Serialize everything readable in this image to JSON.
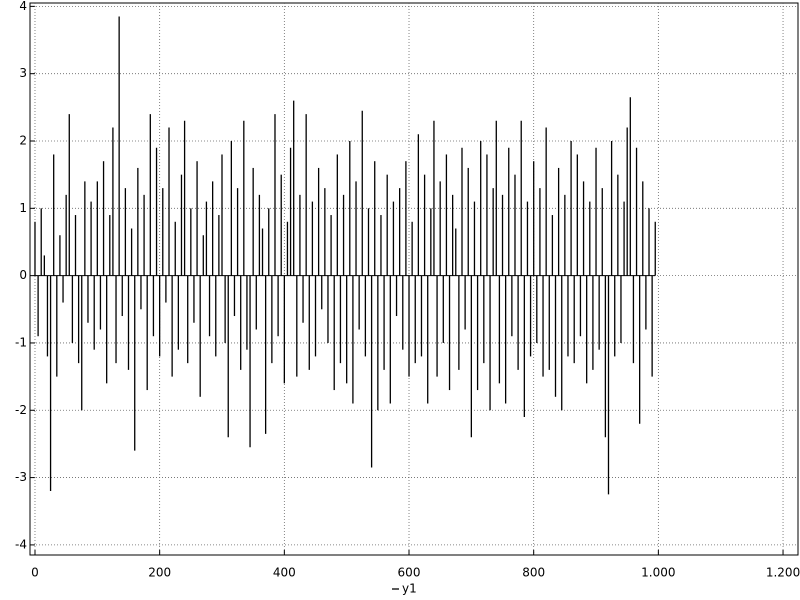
{
  "chart_data": {
    "type": "bar",
    "x": [
      0,
      5,
      10,
      15,
      20,
      25,
      30,
      35,
      40,
      45,
      50,
      55,
      60,
      65,
      70,
      75,
      80,
      85,
      90,
      95,
      100,
      105,
      110,
      115,
      120,
      125,
      130,
      135,
      140,
      145,
      150,
      155,
      160,
      165,
      170,
      175,
      180,
      185,
      190,
      195,
      200,
      205,
      210,
      215,
      220,
      225,
      230,
      235,
      240,
      245,
      250,
      255,
      260,
      265,
      270,
      275,
      280,
      285,
      290,
      295,
      300,
      305,
      310,
      315,
      320,
      325,
      330,
      335,
      340,
      345,
      350,
      355,
      360,
      365,
      370,
      375,
      380,
      385,
      390,
      395,
      400,
      405,
      410,
      415,
      420,
      425,
      430,
      435,
      440,
      445,
      450,
      455,
      460,
      465,
      470,
      475,
      480,
      485,
      490,
      495,
      500,
      505,
      510,
      515,
      520,
      525,
      530,
      535,
      540,
      545,
      550,
      555,
      560,
      565,
      570,
      575,
      580,
      585,
      590,
      595,
      600,
      605,
      610,
      615,
      620,
      625,
      630,
      635,
      640,
      645,
      650,
      655,
      660,
      665,
      670,
      675,
      680,
      685,
      690,
      695,
      700,
      705,
      710,
      715,
      720,
      725,
      730,
      735,
      740,
      745,
      750,
      755,
      760,
      765,
      770,
      775,
      780,
      785,
      790,
      795,
      800,
      805,
      810,
      815,
      820,
      825,
      830,
      835,
      840,
      845,
      850,
      855,
      860,
      865,
      870,
      875,
      880,
      885,
      890,
      895,
      900,
      905,
      910,
      915,
      920,
      925,
      930,
      935,
      940,
      945,
      950,
      955,
      960,
      965,
      970,
      975,
      980,
      985,
      990,
      995
    ],
    "series": [
      {
        "name": "y1",
        "color": "#000000",
        "values": [
          0.8,
          -0.9,
          1.0,
          0.3,
          -1.2,
          -3.2,
          1.8,
          -1.5,
          0.6,
          -0.4,
          1.2,
          2.4,
          -1.0,
          0.9,
          -1.3,
          -2.0,
          1.4,
          -0.7,
          1.1,
          -1.1,
          1.4,
          -0.8,
          1.7,
          -1.6,
          0.9,
          2.2,
          -1.3,
          3.85,
          -0.6,
          1.3,
          -1.4,
          0.7,
          -2.6,
          1.6,
          -0.5,
          1.2,
          -1.7,
          2.4,
          -0.9,
          1.9,
          -1.2,
          1.3,
          -0.4,
          2.2,
          -1.5,
          0.8,
          -1.1,
          1.5,
          2.3,
          -1.3,
          1.0,
          -0.7,
          1.7,
          -1.8,
          0.6,
          1.1,
          -0.9,
          1.4,
          -1.2,
          0.9,
          1.8,
          -1.0,
          -2.4,
          2.0,
          -0.6,
          1.3,
          -1.4,
          2.3,
          -1.1,
          -2.55,
          1.6,
          -0.8,
          1.2,
          0.7,
          -2.35,
          1.0,
          -1.3,
          2.4,
          -0.9,
          1.5,
          -1.6,
          0.8,
          1.9,
          2.6,
          -1.5,
          1.2,
          -0.7,
          2.4,
          -1.4,
          1.1,
          -1.2,
          1.6,
          -0.5,
          1.3,
          -1.0,
          0.9,
          -1.7,
          1.8,
          -1.3,
          1.2,
          -1.6,
          2.0,
          -1.9,
          1.4,
          -0.8,
          2.45,
          -1.2,
          1.0,
          -2.85,
          1.7,
          -2.0,
          0.9,
          -1.4,
          1.5,
          -1.9,
          1.1,
          -0.6,
          1.3,
          -1.1,
          1.7,
          -1.5,
          0.8,
          -1.3,
          2.1,
          -1.2,
          1.5,
          -1.9,
          1.0,
          2.3,
          -1.5,
          1.4,
          -1.0,
          1.8,
          -1.7,
          1.2,
          0.7,
          -1.4,
          1.9,
          -0.8,
          1.6,
          -2.4,
          1.1,
          -1.7,
          2.0,
          -1.3,
          1.8,
          -2.0,
          1.3,
          2.3,
          -1.6,
          1.2,
          -1.9,
          1.9,
          -0.9,
          1.5,
          -1.4,
          2.3,
          -2.1,
          1.1,
          -1.2,
          1.7,
          -1.0,
          1.3,
          -1.5,
          2.2,
          -1.4,
          0.9,
          -1.8,
          1.6,
          -2.0,
          1.2,
          -1.2,
          2.0,
          -1.3,
          1.8,
          -0.9,
          1.4,
          -1.6,
          1.1,
          -1.4,
          1.9,
          -1.1,
          1.3,
          -2.4,
          -3.25,
          2.0,
          -1.2,
          1.5,
          -1.0,
          1.1,
          2.2,
          2.65,
          -1.3,
          1.9,
          -2.2,
          1.4,
          -0.8,
          1.0,
          -1.5,
          0.8
        ]
      }
    ],
    "xlim": [
      -8,
      1224
    ],
    "ylim": [
      -4.15,
      4.05
    ],
    "xticks": [
      0,
      200,
      400,
      600,
      800,
      {
        "value": 1000,
        "label": "1.000"
      },
      {
        "value": 1200,
        "label": "1.200"
      }
    ],
    "yticks": [
      -4,
      -3,
      -2,
      -1,
      0,
      1,
      2,
      3,
      4
    ],
    "grid": true,
    "legend": "bottom"
  }
}
